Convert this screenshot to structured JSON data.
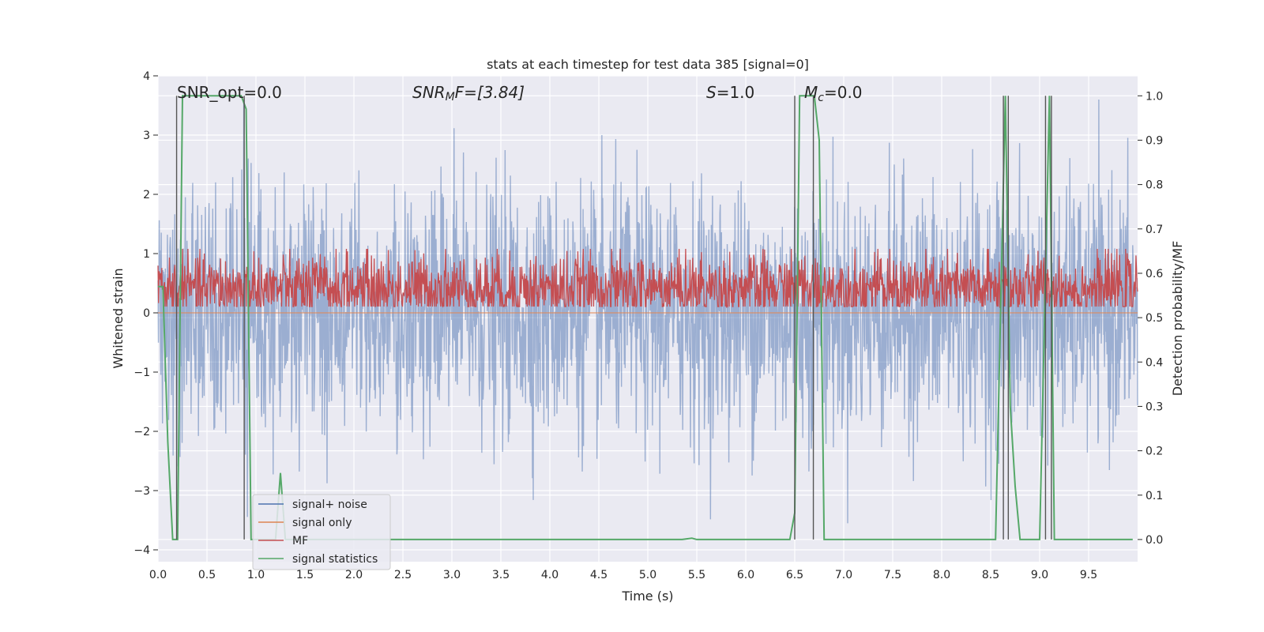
{
  "chart_data": {
    "type": "line",
    "title": "stats at each timestep for test data 385 [signal=0]",
    "xlabel": "Time (s)",
    "ylabel": "Whitened strain",
    "y2label": "Detection probability/MF",
    "xlim": [
      0.0,
      10.0
    ],
    "ylim": [
      -4.2,
      4.0
    ],
    "y2lim": [
      -0.05,
      1.045
    ],
    "x_ticks": [
      "0.0",
      "0.5",
      "1.0",
      "1.5",
      "2.0",
      "2.5",
      "3.0",
      "3.5",
      "4.0",
      "4.5",
      "5.0",
      "5.5",
      "6.0",
      "6.5",
      "7.0",
      "7.5",
      "8.0",
      "8.5",
      "9.0",
      "9.5"
    ],
    "y_ticks": [
      "4",
      "3",
      "2",
      "1",
      "0",
      "−1",
      "−2",
      "−3",
      "−4"
    ],
    "y2_ticks": [
      "1.0",
      "0.9",
      "0.8",
      "0.7",
      "0.6",
      "0.5",
      "0.4",
      "0.3",
      "0.2",
      "0.1",
      "0.0"
    ],
    "grid": true,
    "legend_position": "lower-left",
    "annotations": {
      "snr_opt": "SNR_opt=0.0",
      "snr_mf_sym": "SNR",
      "snr_mf_sub": "M",
      "snr_mf_rest": "F=[3.84]",
      "s_sym": "S",
      "s_rest": "=1.0",
      "mc_sym": "M",
      "mc_sub": "c",
      "mc_rest": "=0.0"
    },
    "series": [
      {
        "name": "signal+ noise",
        "color": "#4c72b0",
        "axis": "left",
        "description_stats": {
          "mean": 0.0,
          "std": 1.0
        }
      },
      {
        "name": "signal only",
        "color": "#dd8452",
        "axis": "left",
        "values_constant": 0.0
      },
      {
        "name": "MF",
        "color": "#c44e52",
        "axis": "right",
        "description_stats": {
          "mean": 0.565,
          "spread": 0.04
        }
      },
      {
        "name": "signal statistics",
        "color": "#55a868",
        "axis": "right",
        "x": [
          0.0,
          0.05,
          0.1,
          0.15,
          0.2,
          0.25,
          0.3,
          0.85,
          0.9,
          0.95,
          1.0,
          1.2,
          1.25,
          1.3,
          1.35,
          5.35,
          5.45,
          5.5,
          6.45,
          6.5,
          6.55,
          6.7,
          6.75,
          6.8,
          6.85,
          8.55,
          8.6,
          8.65,
          8.7,
          8.75,
          8.8,
          8.85,
          9.0,
          9.05,
          9.1,
          9.15,
          9.2,
          9.25,
          9.95
        ],
        "y": [
          0.57,
          0.57,
          0.22,
          0.0,
          0.0,
          1.0,
          1.0,
          1.0,
          0.97,
          0.0,
          0.0,
          0.0,
          0.15,
          0.0,
          0.0,
          0.0,
          0.003,
          0.0,
          0.0,
          0.06,
          1.0,
          1.0,
          0.9,
          0.0,
          0.0,
          0.0,
          0.5,
          1.0,
          0.3,
          0.12,
          0.0,
          0.0,
          0.0,
          0.5,
          1.0,
          0.0,
          0.0,
          0.0,
          0.0
        ]
      }
    ],
    "vertical_lines_x": [
      0.19,
      0.88,
      6.5,
      6.69,
      8.63,
      8.68,
      9.06,
      9.12
    ]
  }
}
